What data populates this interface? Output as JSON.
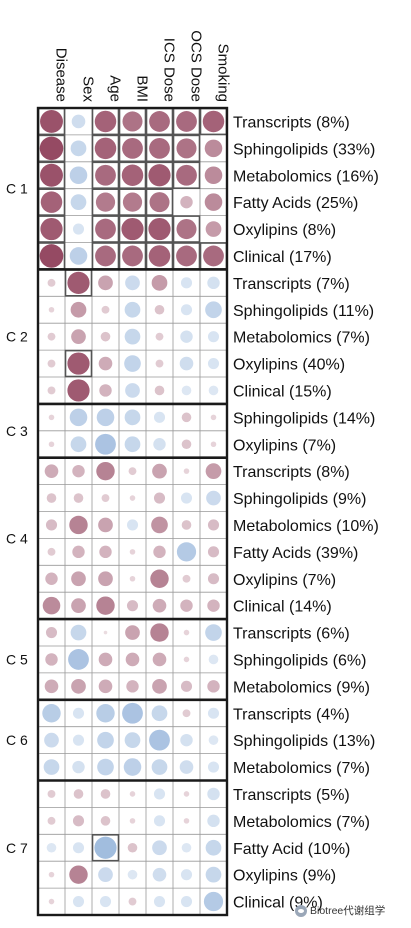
{
  "chart_data": {
    "type": "heatmap",
    "title": "",
    "columns": [
      "Disease",
      "Sex",
      "Age",
      "BMI",
      "ICS Dose",
      "OCS Dose",
      "Smoking"
    ],
    "value_range": [
      -1,
      1
    ],
    "colors": {
      "positive": "#8c3a55",
      "negative": "#8fb0d8",
      "grid": "#999999",
      "border": "#1a1a1a"
    },
    "clusters": [
      {
        "label": "C 1",
        "rows": [
          {
            "label": "Transcripts (8%)",
            "values": [
              0.85,
              -0.3,
              0.75,
              0.65,
              0.7,
              0.7,
              0.75
            ],
            "highlighted": [
              0,
              2,
              3,
              4,
              5,
              6
            ]
          },
          {
            "label": "Sphingolipids (33%)",
            "values": [
              0.9,
              -0.4,
              0.75,
              0.7,
              0.7,
              0.65,
              0.5
            ],
            "highlighted": [
              0,
              2,
              3,
              4,
              5
            ]
          },
          {
            "label": "Metabolomics (16%)",
            "values": [
              0.85,
              -0.5,
              0.7,
              0.75,
              0.8,
              0.7,
              0.5
            ],
            "highlighted": [
              0,
              2,
              3,
              4,
              5
            ]
          },
          {
            "label": "Fatty Acids (25%)",
            "values": [
              0.75,
              -0.4,
              0.6,
              0.6,
              0.65,
              0.25,
              0.5
            ],
            "highlighted": [
              0,
              2,
              3,
              4
            ]
          },
          {
            "label": "Oxylipins (8%)",
            "values": [
              0.8,
              -0.2,
              0.7,
              0.8,
              0.8,
              0.65,
              0.4
            ],
            "highlighted": [
              0,
              2,
              3,
              4,
              5
            ]
          },
          {
            "label": "Clinical (17%)",
            "values": [
              0.9,
              -0.5,
              0.7,
              0.7,
              0.75,
              0.7,
              0.7
            ],
            "highlighted": [
              0,
              2,
              3,
              4,
              5,
              6
            ]
          }
        ]
      },
      {
        "label": "C 2",
        "rows": [
          {
            "label": "Transcripts (7%)",
            "values": [
              0.1,
              0.8,
              0.35,
              -0.35,
              0.4,
              -0.2,
              -0.25
            ],
            "highlighted": [
              1
            ]
          },
          {
            "label": "Sphingolipids (11%)",
            "values": [
              0.05,
              0.4,
              0.1,
              -0.4,
              0.15,
              -0.2,
              -0.45
            ],
            "highlighted": []
          },
          {
            "label": "Metabolomics (7%)",
            "values": [
              0.1,
              0.35,
              0.15,
              -0.4,
              0.1,
              -0.25,
              -0.2
            ],
            "highlighted": []
          },
          {
            "label": "Oxylipins (40%)",
            "values": [
              0.1,
              0.8,
              0.3,
              -0.45,
              0.1,
              -0.3,
              -0.2
            ],
            "highlighted": [
              1
            ]
          },
          {
            "label": "Clinical (15%)",
            "values": [
              0.1,
              0.8,
              0.25,
              -0.35,
              0.15,
              -0.15,
              -0.15
            ],
            "highlighted": []
          }
        ]
      },
      {
        "label": "C 3",
        "rows": [
          {
            "label": "Sphingolipids (14%)",
            "values": [
              0.05,
              -0.5,
              -0.5,
              -0.4,
              -0.2,
              0.15,
              0.05
            ],
            "highlighted": []
          },
          {
            "label": "Oxylipins (7%)",
            "values": [
              0.05,
              -0.4,
              -0.7,
              -0.4,
              -0.25,
              0.15,
              0.05
            ],
            "highlighted": []
          }
        ]
      },
      {
        "label": "C 4",
        "rows": [
          {
            "label": "Transcripts (8%)",
            "values": [
              0.3,
              0.25,
              0.55,
              0.1,
              0.35,
              0.05,
              0.4
            ],
            "highlighted": []
          },
          {
            "label": "Sphingolipids (9%)",
            "values": [
              0.15,
              0.15,
              0.1,
              0.05,
              0.2,
              -0.2,
              -0.35
            ],
            "highlighted": []
          },
          {
            "label": "Metabolomics (10%)",
            "values": [
              0.2,
              0.55,
              0.35,
              -0.2,
              0.45,
              0.15,
              0.2
            ],
            "highlighted": []
          },
          {
            "label": "Fatty Acids (39%)",
            "values": [
              0.1,
              0.25,
              0.25,
              0.05,
              0.25,
              -0.6,
              0.2
            ],
            "highlighted": []
          },
          {
            "label": "Oxylipins (7%)",
            "values": [
              0.25,
              0.35,
              0.35,
              0.05,
              0.55,
              0.1,
              0.2
            ],
            "highlighted": []
          },
          {
            "label": "Clinical (14%)",
            "values": [
              0.5,
              0.35,
              0.55,
              0.2,
              0.3,
              0.25,
              0.25
            ],
            "highlighted": []
          }
        ]
      },
      {
        "label": "C 5",
        "rows": [
          {
            "label": "Transcripts (6%)",
            "values": [
              0.2,
              -0.4,
              0.0,
              0.35,
              0.55,
              0.05,
              -0.45
            ],
            "highlighted": []
          },
          {
            "label": "Sphingolipids (6%)",
            "values": [
              0.25,
              -0.7,
              0.3,
              0.3,
              0.3,
              0.05,
              -0.15
            ],
            "highlighted": []
          },
          {
            "label": "Metabolomics (9%)",
            "values": [
              0.3,
              0.35,
              0.3,
              0.25,
              0.35,
              0.2,
              0.25
            ],
            "highlighted": []
          }
        ]
      },
      {
        "label": "C 6",
        "rows": [
          {
            "label": "Transcripts (4%)",
            "values": [
              -0.55,
              -0.2,
              -0.55,
              -0.7,
              -0.4,
              0.1,
              -0.2
            ],
            "highlighted": []
          },
          {
            "label": "Sphingolipids (13%)",
            "values": [
              -0.35,
              -0.2,
              -0.45,
              -0.4,
              -0.7,
              -0.25,
              -0.15
            ],
            "highlighted": []
          },
          {
            "label": "Metabolomics (7%)",
            "values": [
              -0.4,
              -0.25,
              -0.45,
              -0.5,
              -0.4,
              -0.3,
              -0.2
            ],
            "highlighted": []
          }
        ]
      },
      {
        "label": "C 7",
        "rows": [
          {
            "label": "Transcripts (5%)",
            "values": [
              0.1,
              0.15,
              0.15,
              0.05,
              -0.2,
              0.05,
              -0.25
            ],
            "highlighted": []
          },
          {
            "label": "Metabolomics (7%)",
            "values": [
              0.1,
              0.2,
              0.15,
              0.05,
              -0.2,
              0.05,
              -0.25
            ],
            "highlighted": []
          },
          {
            "label": "Fatty Acid (10%)",
            "values": [
              -0.15,
              -0.2,
              -0.8,
              0.15,
              -0.35,
              -0.15,
              -0.4
            ],
            "highlighted": [
              2
            ]
          },
          {
            "label": "Oxylipins (9%)",
            "values": [
              0.05,
              0.55,
              -0.35,
              -0.15,
              -0.3,
              -0.2,
              -0.4
            ],
            "highlighted": []
          },
          {
            "label": "Clinical (9%)",
            "values": [
              0.05,
              -0.2,
              -0.2,
              0.1,
              -0.2,
              -0.2,
              -0.6
            ],
            "highlighted": []
          }
        ]
      }
    ]
  },
  "watermark": {
    "text": "Biotree代谢组学",
    "icon": "wechat-icon"
  }
}
